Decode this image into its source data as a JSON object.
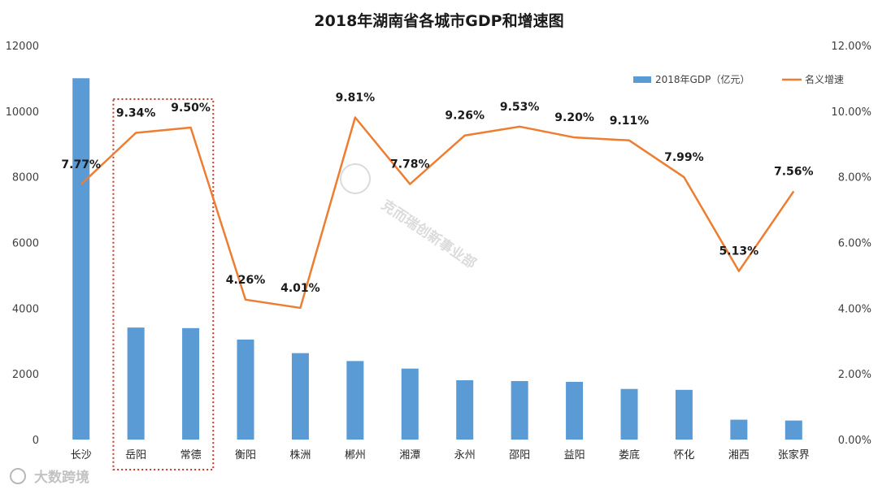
{
  "chart_data": {
    "type": "bar+line",
    "title": "2018年湖南省各城市GDP和增速图",
    "categories": [
      "长沙",
      "岳阳",
      "常德",
      "衡阳",
      "株洲",
      "郴州",
      "湘潭",
      "永州",
      "邵阳",
      "益阳",
      "娄底",
      "怀化",
      "湘西",
      "张家界"
    ],
    "series": [
      {
        "name": "2018年GDP（亿元）",
        "type": "bar",
        "axis": "left",
        "color": "#5B9BD5",
        "values": [
          11003,
          3411,
          3394,
          3046,
          2632,
          2391,
          2161,
          1806,
          1782,
          1758,
          1541,
          1514,
          605,
          579
        ]
      },
      {
        "name": "名义增速",
        "type": "line",
        "axis": "right",
        "color": "#ED7D31",
        "values": [
          7.77,
          9.34,
          9.5,
          4.26,
          4.01,
          9.81,
          7.78,
          9.26,
          9.53,
          9.2,
          9.11,
          7.99,
          5.13,
          7.56
        ],
        "labels": [
          "7.77%",
          "9.34%",
          "9.50%",
          "4.26%",
          "4.01%",
          "9.81%",
          "7.78%",
          "9.26%",
          "9.53%",
          "9.20%",
          "9.11%",
          "7.99%",
          "5.13%",
          "7.56%"
        ]
      }
    ],
    "y_left": {
      "min": 0,
      "max": 12000,
      "ticks": [
        "0",
        "2000",
        "4000",
        "6000",
        "8000",
        "10000",
        "12000"
      ]
    },
    "y_right": {
      "min": 0,
      "max": 12,
      "ticks": [
        "0.00%",
        "2.00%",
        "4.00%",
        "6.00%",
        "8.00%",
        "10.00%",
        "12.00%"
      ]
    },
    "highlight": {
      "categories": [
        "岳阳",
        "常德"
      ],
      "style": "dotted",
      "color": "#C0392B"
    },
    "legend_position": "top-right",
    "grid": false
  },
  "watermarks": {
    "center": "克而瑞创新事业部",
    "bottom_left": "大数跨境"
  }
}
